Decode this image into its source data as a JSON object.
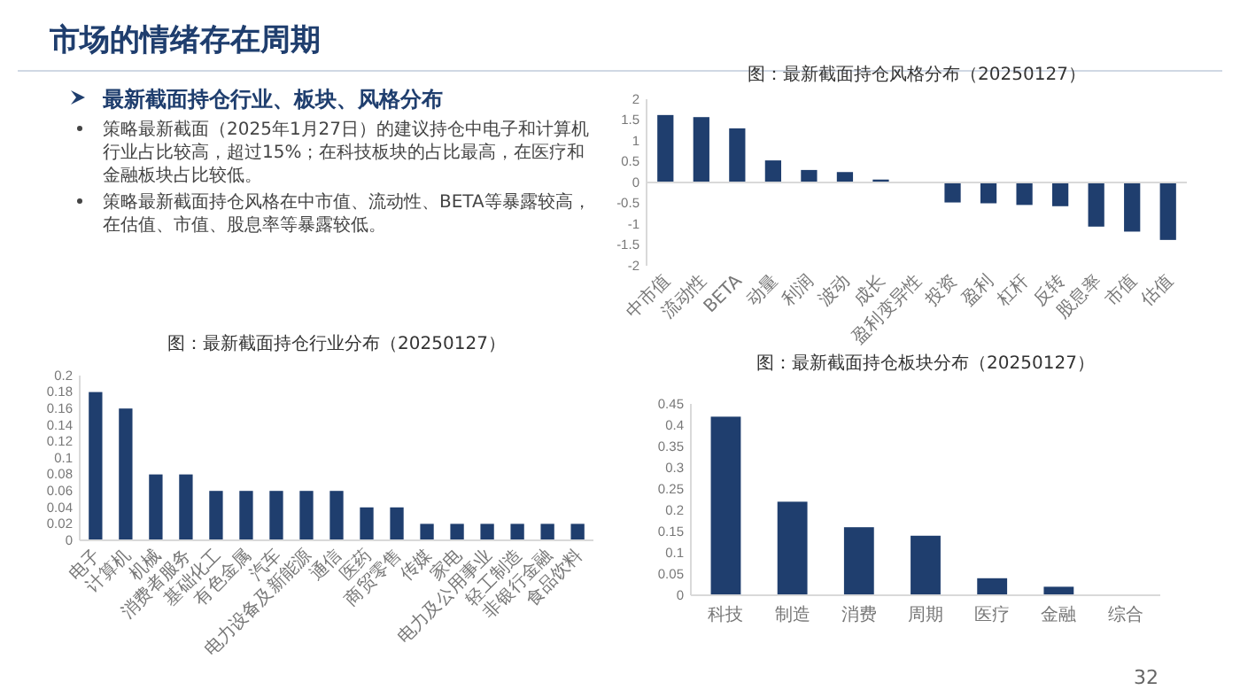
{
  "chart_data": [
    {
      "type": "other",
      "title": "市场的情绪存在周期",
      "subtitle": "最新截面持仓行业、板块、风格分布",
      "annotations": [
        "策略最新截面（2025年1月27日）的建议持仓中电子和计算机行业占比较高，超过15%；在科技板块的占比最高，在医疗和金融板块占比较低。",
        "策略最新截面持仓风格在中市值、流动性、BETA等暴露较高，在估值、市值、股息率等暴露较低。",
        "32"
      ]
    },
    {
      "type": "bar",
      "title": "图：最新截面持仓风格分布（20250127）",
      "categories": [
        "中市值",
        "流动性",
        "BETA",
        "动量",
        "利润",
        "波动",
        "成长",
        "盈利变异性",
        "投资",
        "盈利",
        "杠杆",
        "反转",
        "股息率",
        "市值",
        "估值"
      ],
      "values": [
        1.62,
        1.57,
        1.3,
        0.53,
        0.3,
        0.25,
        0.07,
        0,
        -0.48,
        -0.5,
        -0.54,
        -0.57,
        -1.06,
        -1.18,
        -1.38
      ],
      "color": "#1f3e6e",
      "ylim": [
        -2,
        2
      ],
      "yticks": [
        -2,
        -1.5,
        -1,
        -0.5,
        0,
        0.5,
        1,
        1.5,
        2
      ]
    },
    {
      "type": "bar",
      "title": "图：最新截面持仓行业分布（20250127）",
      "categories": [
        "电子",
        "计算机",
        "机械",
        "消费者服务",
        "基础化工",
        "有色金属",
        "汽车",
        "电力设备及新能源",
        "通信",
        "医药",
        "商贸零售",
        "传媒",
        "家电",
        "电力及公用事业",
        "轻工制造",
        "非银行金融",
        "食品饮料"
      ],
      "values": [
        0.18,
        0.16,
        0.08,
        0.08,
        0.06,
        0.06,
        0.06,
        0.06,
        0.06,
        0.04,
        0.04,
        0.02,
        0.02,
        0.02,
        0.02,
        0.02,
        0.02
      ],
      "color": "#1f3e6e",
      "ylim": [
        0,
        0.2
      ],
      "yticks": [
        0,
        0.02,
        0.04,
        0.06,
        0.08,
        0.1,
        0.12,
        0.14,
        0.16,
        0.18,
        0.2
      ]
    },
    {
      "type": "bar",
      "title": "图：最新截面持仓板块分布（20250127）",
      "categories": [
        "科技",
        "制造",
        "消费",
        "周期",
        "医疗",
        "金融",
        "综合"
      ],
      "values": [
        0.42,
        0.22,
        0.16,
        0.14,
        0.04,
        0.02,
        0
      ],
      "color": "#1f3e6e",
      "ylim": [
        0,
        0.45
      ],
      "yticks": [
        0,
        0.05,
        0.1,
        0.15,
        0.2,
        0.25,
        0.3,
        0.35,
        0.4,
        0.45
      ]
    }
  ]
}
